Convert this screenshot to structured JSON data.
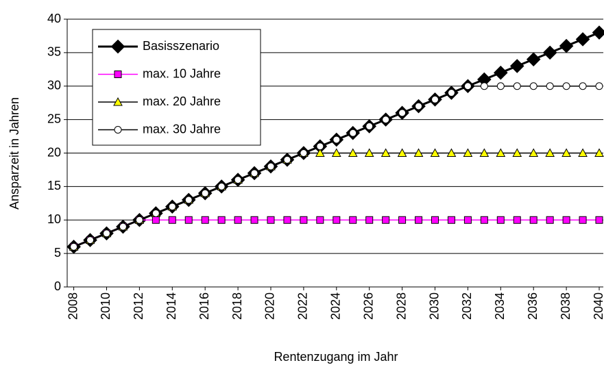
{
  "chart_data": {
    "type": "line",
    "x_label": "Rentenzugang im Jahr",
    "y_label": "Ansparzeit in Jahren",
    "x": [
      2008,
      2009,
      2010,
      2011,
      2012,
      2013,
      2014,
      2015,
      2016,
      2017,
      2018,
      2019,
      2020,
      2021,
      2022,
      2023,
      2024,
      2025,
      2026,
      2027,
      2028,
      2029,
      2030,
      2031,
      2032,
      2033,
      2034,
      2035,
      2036,
      2037,
      2038,
      2039,
      2040
    ],
    "xlim": [
      2007.6,
      2040.25
    ],
    "xticks": [
      2008,
      2010,
      2012,
      2014,
      2016,
      2018,
      2020,
      2022,
      2024,
      2026,
      2028,
      2030,
      2032,
      2034,
      2036,
      2038,
      2040
    ],
    "ylim": [
      0,
      40
    ],
    "yticks": [
      0,
      5,
      10,
      15,
      20,
      25,
      30,
      35,
      40
    ],
    "grid": true,
    "legend": "upper left",
    "series": [
      {
        "name": "Basisszenario",
        "color": "#000000",
        "marker": "diamond",
        "marker_color": "#000000",
        "values": [
          6,
          7,
          8,
          9,
          10,
          11,
          12,
          13,
          14,
          15,
          16,
          17,
          18,
          19,
          20,
          21,
          22,
          23,
          24,
          25,
          26,
          27,
          28,
          29,
          30,
          31,
          32,
          33,
          34,
          35,
          36,
          37,
          38
        ]
      },
      {
        "name": "max. 10 Jahre",
        "color": "#ff00ff",
        "marker": "square",
        "marker_color": "#ff00ff",
        "values": [
          6,
          7,
          8,
          9,
          10,
          10,
          10,
          10,
          10,
          10,
          10,
          10,
          10,
          10,
          10,
          10,
          10,
          10,
          10,
          10,
          10,
          10,
          10,
          10,
          10,
          10,
          10,
          10,
          10,
          10,
          10,
          10,
          10
        ]
      },
      {
        "name": "max. 20 Jahre",
        "color": "#000000",
        "marker": "triangle",
        "marker_color": "#ffff00",
        "values": [
          6,
          7,
          8,
          9,
          10,
          11,
          12,
          13,
          14,
          15,
          16,
          17,
          18,
          19,
          20,
          20,
          20,
          20,
          20,
          20,
          20,
          20,
          20,
          20,
          20,
          20,
          20,
          20,
          20,
          20,
          20,
          20,
          20
        ]
      },
      {
        "name": "max. 30 Jahre",
        "color": "#000000",
        "marker": "circle",
        "marker_color": "#ffffff",
        "values": [
          6,
          7,
          8,
          9,
          10,
          11,
          12,
          13,
          14,
          15,
          16,
          17,
          18,
          19,
          20,
          21,
          22,
          23,
          24,
          25,
          26,
          27,
          28,
          29,
          30,
          30,
          30,
          30,
          30,
          30,
          30,
          30,
          30
        ]
      }
    ]
  }
}
